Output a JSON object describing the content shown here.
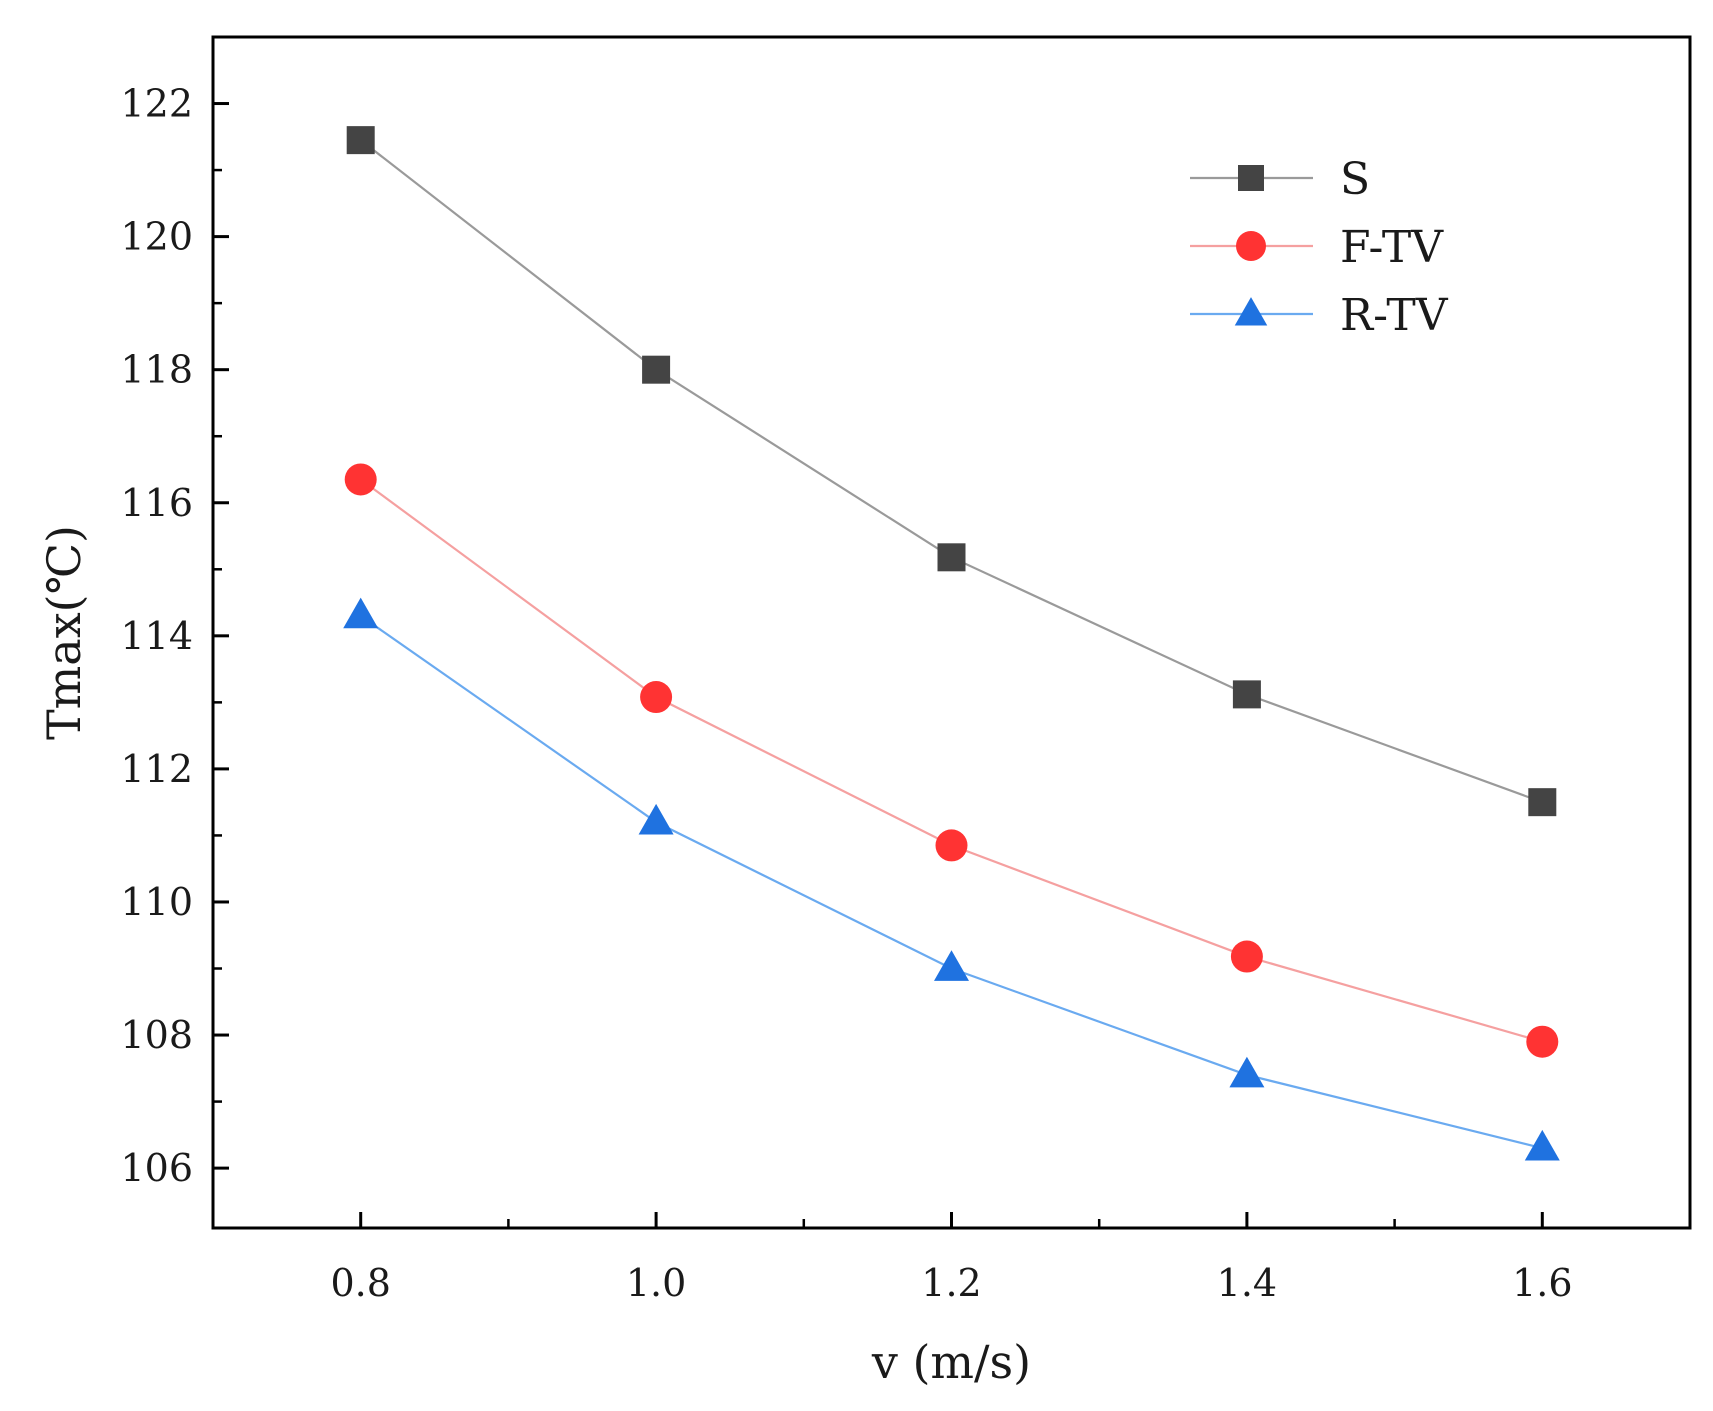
{
  "chart_data": {
    "type": "line",
    "title": "",
    "xlabel": "v (m/s)",
    "ylabel": "Tmax(℃)",
    "xlim": [
      0.7,
      1.7
    ],
    "ylim": [
      105.1,
      123
    ],
    "x": [
      0.8,
      1.0,
      1.2,
      1.4,
      1.6
    ],
    "x_tick_labels": [
      "0.8",
      "1.0",
      "1.2",
      "1.4",
      "1.6"
    ],
    "y_ticks": [
      106,
      108,
      110,
      112,
      114,
      116,
      118,
      120,
      122
    ],
    "y_tick_labels": [
      "106",
      "108",
      "110",
      "112",
      "114",
      "116",
      "118",
      "120",
      "122"
    ],
    "grid": false,
    "legend_position": "top-right",
    "series": [
      {
        "name": "S",
        "marker": "square",
        "color": "#444444",
        "line_color": "#9a9a9a",
        "values": [
          121.45,
          118.0,
          115.18,
          113.12,
          111.5
        ]
      },
      {
        "name": "F-TV",
        "marker": "circle",
        "color": "#ff3333",
        "line_color": "#f5a0a0",
        "values": [
          116.35,
          113.08,
          110.85,
          109.18,
          107.9
        ]
      },
      {
        "name": "R-TV",
        "marker": "triangle",
        "color": "#1f72e0",
        "line_color": "#6aaaf0",
        "values": [
          114.3,
          111.2,
          109.0,
          107.4,
          106.3
        ]
      }
    ]
  }
}
